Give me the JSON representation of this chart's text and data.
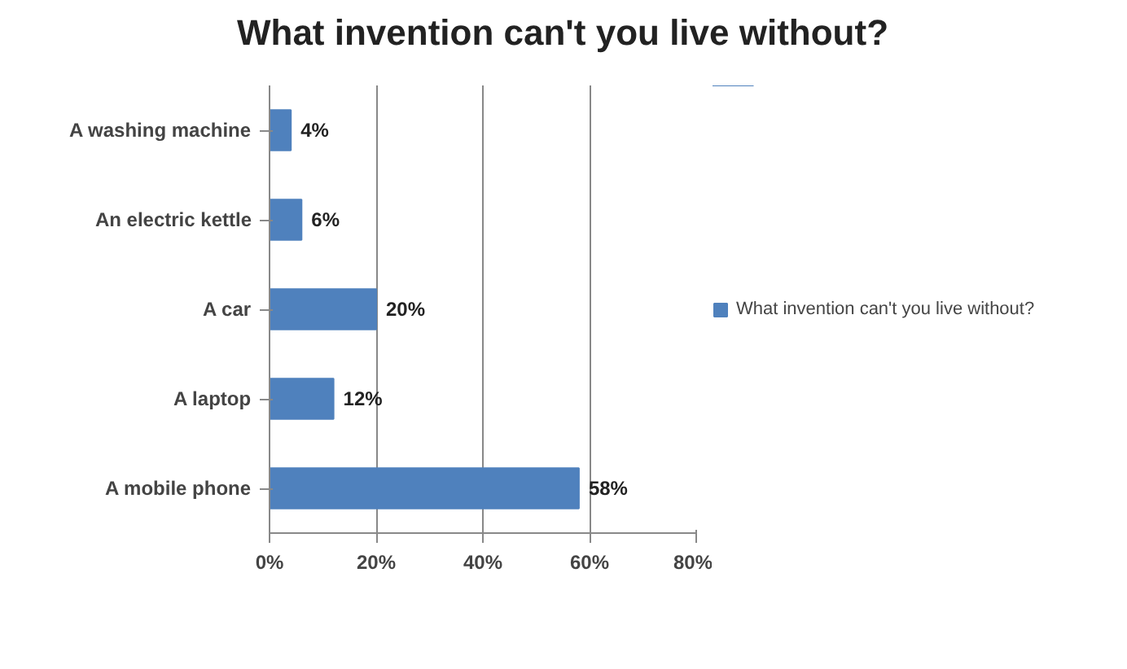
{
  "chart_data": {
    "type": "bar",
    "orientation": "horizontal",
    "title": "What invention can't you live without?",
    "categories": [
      "A washing machine",
      "An electric kettle",
      "A car",
      "A laptop",
      "A mobile phone"
    ],
    "series": [
      {
        "name": "What invention can't you live without?",
        "color": "#4f81bd",
        "values": [
          4,
          6,
          20,
          12,
          58
        ],
        "value_labels": [
          "4%",
          "6%",
          "20%",
          "12%",
          "58%"
        ]
      }
    ],
    "xlim": [
      0,
      80
    ],
    "xticks": [
      {
        "value": 0,
        "label": "0%"
      },
      {
        "value": 20,
        "label": "20%"
      },
      {
        "value": 40,
        "label": "40%"
      },
      {
        "value": 60,
        "label": "60%"
      },
      {
        "value": 80,
        "label": "80%"
      }
    ],
    "grid": "x",
    "legend": "right"
  }
}
